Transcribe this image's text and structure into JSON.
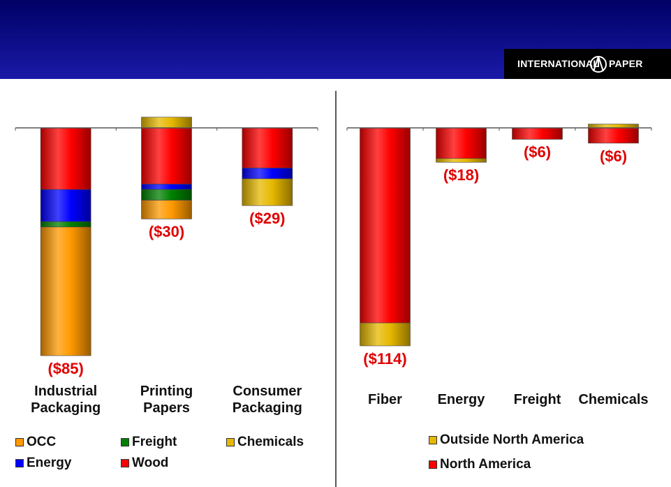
{
  "header": {
    "logo": [
      "INTERNATIONAL",
      "PAPER"
    ]
  },
  "chart_data": [
    {
      "type": "bar",
      "stacked": true,
      "categories": [
        "Industrial Packaging",
        "Printing Papers",
        "Consumer Packaging"
      ],
      "series": [
        {
          "name": "Wood",
          "color": "#ff0000",
          "values": [
            -23,
            -21,
            -15
          ]
        },
        {
          "name": "Energy",
          "color": "#0000ff",
          "values": [
            -12,
            -2,
            -4
          ]
        },
        {
          "name": "Freight",
          "color": "#008000",
          "values": [
            -2,
            -4,
            0
          ]
        },
        {
          "name": "OCC",
          "color": "#ff9900",
          "values": [
            -48,
            -7,
            0
          ]
        },
        {
          "name": "Chemicals",
          "color": "#e6b800",
          "values": [
            0,
            4,
            -10
          ]
        }
      ],
      "totals": [
        -85,
        -30,
        -29
      ],
      "total_labels": [
        "($85)",
        "($30)",
        "($29)"
      ],
      "ylim": [
        -90,
        5
      ]
    },
    {
      "type": "bar",
      "stacked": true,
      "categories": [
        "Fiber",
        "Energy",
        "Freight",
        "Chemicals"
      ],
      "series": [
        {
          "name": "North America",
          "color": "#ff0000",
          "values": [
            -102,
            -16,
            -6,
            -8
          ]
        },
        {
          "name": "Outside North America",
          "color": "#e6b800",
          "values": [
            -12,
            -2,
            0,
            2
          ]
        }
      ],
      "totals": [
        -114,
        -18,
        -6,
        -6
      ],
      "total_labels": [
        "($114)",
        "($18)",
        "($6)",
        "($6)"
      ],
      "ylim": [
        -120,
        3
      ]
    }
  ]
}
